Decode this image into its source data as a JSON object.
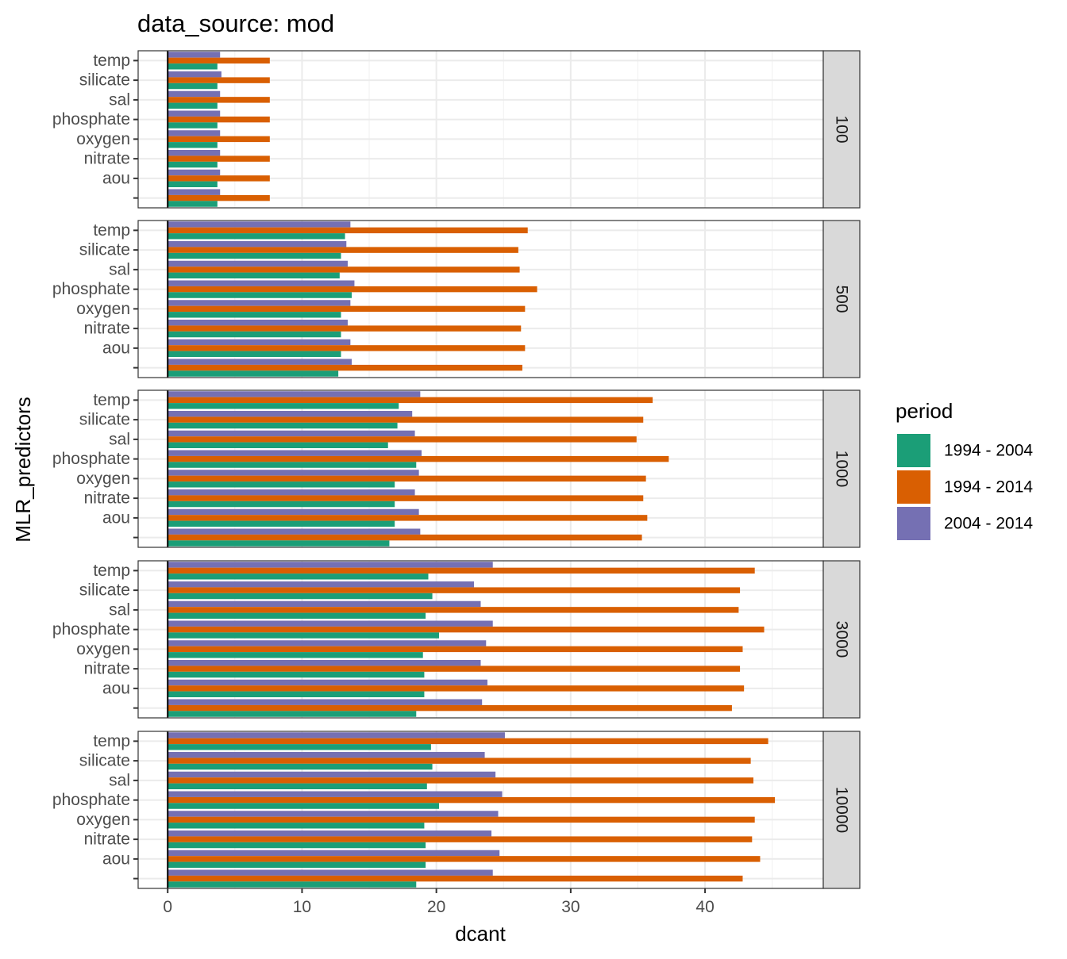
{
  "chart_data": {
    "type": "bar",
    "orientation": "horizontal",
    "title": "data_source: mod",
    "xlabel": "dcant",
    "ylabel": "MLR_predictors",
    "xlim": [
      -2.2,
      48.8
    ],
    "x_ticks": [
      0,
      10,
      20,
      30,
      40
    ],
    "grid": true,
    "legend": {
      "title": "period",
      "position": "right",
      "entries": [
        {
          "name": "1994 - 2004",
          "color": "#1B9E77"
        },
        {
          "name": "1994 - 2014",
          "color": "#D95F02"
        },
        {
          "name": "2004 - 2014",
          "color": "#7570B3"
        }
      ]
    },
    "categories": [
      "temp",
      "silicate",
      "sal",
      "phosphate",
      "oxygen",
      "nitrate",
      "aou",
      ""
    ],
    "panels": [
      {
        "label": "100",
        "series": [
          {
            "name": "1994 - 2004",
            "values": [
              3.7,
              3.7,
              3.7,
              3.7,
              3.7,
              3.7,
              3.7,
              3.7
            ]
          },
          {
            "name": "1994 - 2014",
            "values": [
              7.6,
              7.6,
              7.6,
              7.6,
              7.6,
              7.6,
              7.6,
              7.6
            ]
          },
          {
            "name": "2004 - 2014",
            "values": [
              3.9,
              4.0,
              3.9,
              3.9,
              3.9,
              3.9,
              3.9,
              3.9
            ]
          }
        ]
      },
      {
        "label": "500",
        "series": [
          {
            "name": "1994 - 2004",
            "values": [
              13.2,
              12.9,
              12.8,
              13.7,
              12.9,
              12.9,
              12.9,
              12.7
            ]
          },
          {
            "name": "1994 - 2014",
            "values": [
              26.8,
              26.1,
              26.2,
              27.5,
              26.6,
              26.3,
              26.6,
              26.4
            ]
          },
          {
            "name": "2004 - 2014",
            "values": [
              13.6,
              13.3,
              13.4,
              13.9,
              13.6,
              13.4,
              13.6,
              13.7
            ]
          }
        ]
      },
      {
        "label": "1000",
        "series": [
          {
            "name": "1994 - 2004",
            "values": [
              17.2,
              17.1,
              16.4,
              18.5,
              16.9,
              16.9,
              16.9,
              16.5
            ]
          },
          {
            "name": "1994 - 2014",
            "values": [
              36.1,
              35.4,
              34.9,
              37.3,
              35.6,
              35.4,
              35.7,
              35.3
            ]
          },
          {
            "name": "2004 - 2014",
            "values": [
              18.8,
              18.2,
              18.4,
              18.9,
              18.7,
              18.4,
              18.7,
              18.8
            ]
          }
        ]
      },
      {
        "label": "3000",
        "series": [
          {
            "name": "1994 - 2004",
            "values": [
              19.4,
              19.7,
              19.2,
              20.2,
              19.0,
              19.1,
              19.1,
              18.5
            ]
          },
          {
            "name": "1994 - 2014",
            "values": [
              43.7,
              42.6,
              42.5,
              44.4,
              42.8,
              42.6,
              42.9,
              42.0
            ]
          },
          {
            "name": "2004 - 2014",
            "values": [
              24.2,
              22.8,
              23.3,
              24.2,
              23.7,
              23.3,
              23.8,
              23.4
            ]
          }
        ]
      },
      {
        "label": "10000",
        "series": [
          {
            "name": "1994 - 2004",
            "values": [
              19.6,
              19.7,
              19.3,
              20.2,
              19.1,
              19.2,
              19.2,
              18.5
            ]
          },
          {
            "name": "1994 - 2014",
            "values": [
              44.7,
              43.4,
              43.6,
              45.2,
              43.7,
              43.5,
              44.1,
              42.8
            ]
          },
          {
            "name": "2004 - 2014",
            "values": [
              25.1,
              23.6,
              24.4,
              24.9,
              24.6,
              24.1,
              24.7,
              24.2
            ]
          }
        ]
      }
    ]
  }
}
